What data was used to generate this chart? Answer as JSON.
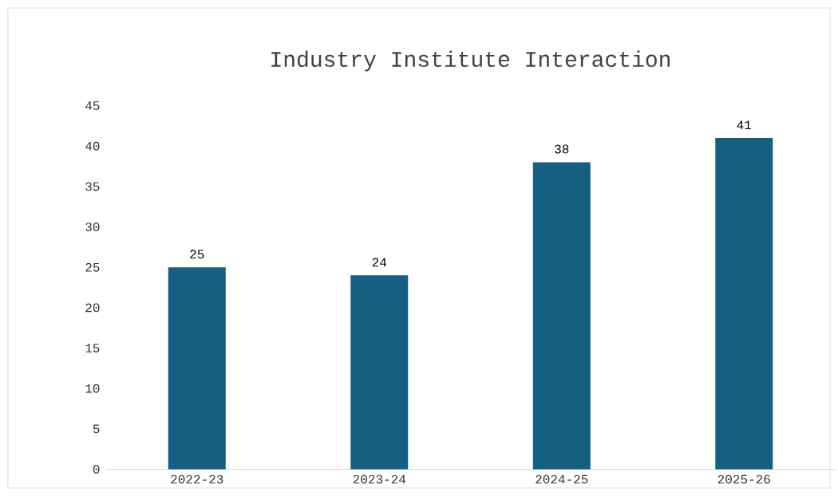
{
  "chart_data": {
    "type": "bar",
    "title": "Industry Institute Interaction",
    "categories": [
      "2022-23",
      "2023-24",
      "2024-25",
      "2025-26"
    ],
    "values": [
      25,
      24,
      38,
      41
    ],
    "color": "#156082",
    "ylim": [
      0,
      45
    ],
    "yticks": [
      0,
      5,
      10,
      15,
      20,
      25,
      30,
      35,
      40,
      45
    ],
    "data_labels": true
  }
}
